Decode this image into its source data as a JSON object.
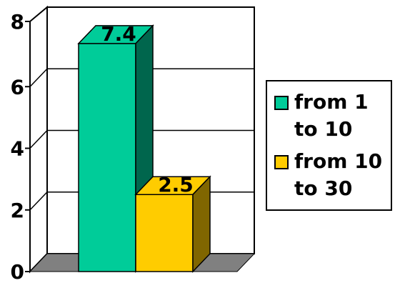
{
  "chart_data": {
    "type": "bar",
    "title": "",
    "xlabel": "",
    "ylabel": "",
    "ylim": [
      0,
      8
    ],
    "yticks": [
      "0",
      "2",
      "4",
      "6",
      "8"
    ],
    "grid": true,
    "legend_position": "right",
    "series": [
      {
        "name": "from 1 to 10",
        "value": 7.4,
        "label": "7.4",
        "color": "#00CC99"
      },
      {
        "name": "from 10 to 30",
        "value": 2.5,
        "label": "2.5",
        "color": "#FFCC00"
      }
    ]
  }
}
